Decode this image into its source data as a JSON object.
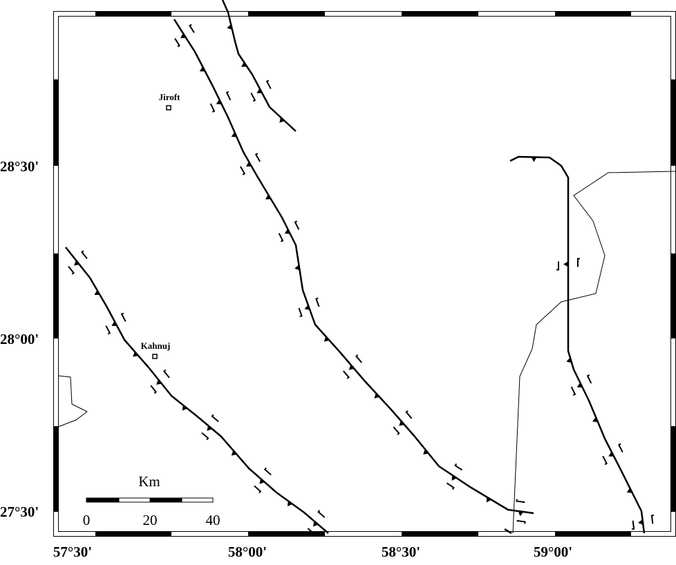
{
  "map": {
    "x_labels": [
      "57°30'",
      "58°00'",
      "58°30'",
      "59°00'"
    ],
    "y_labels": [
      "28°30'",
      "28°00'",
      "27°30'"
    ],
    "places": [
      "Jiroft",
      "Kahnuj"
    ],
    "scale": {
      "unit": "Km",
      "labels": [
        "0",
        "20",
        "40"
      ]
    }
  }
}
